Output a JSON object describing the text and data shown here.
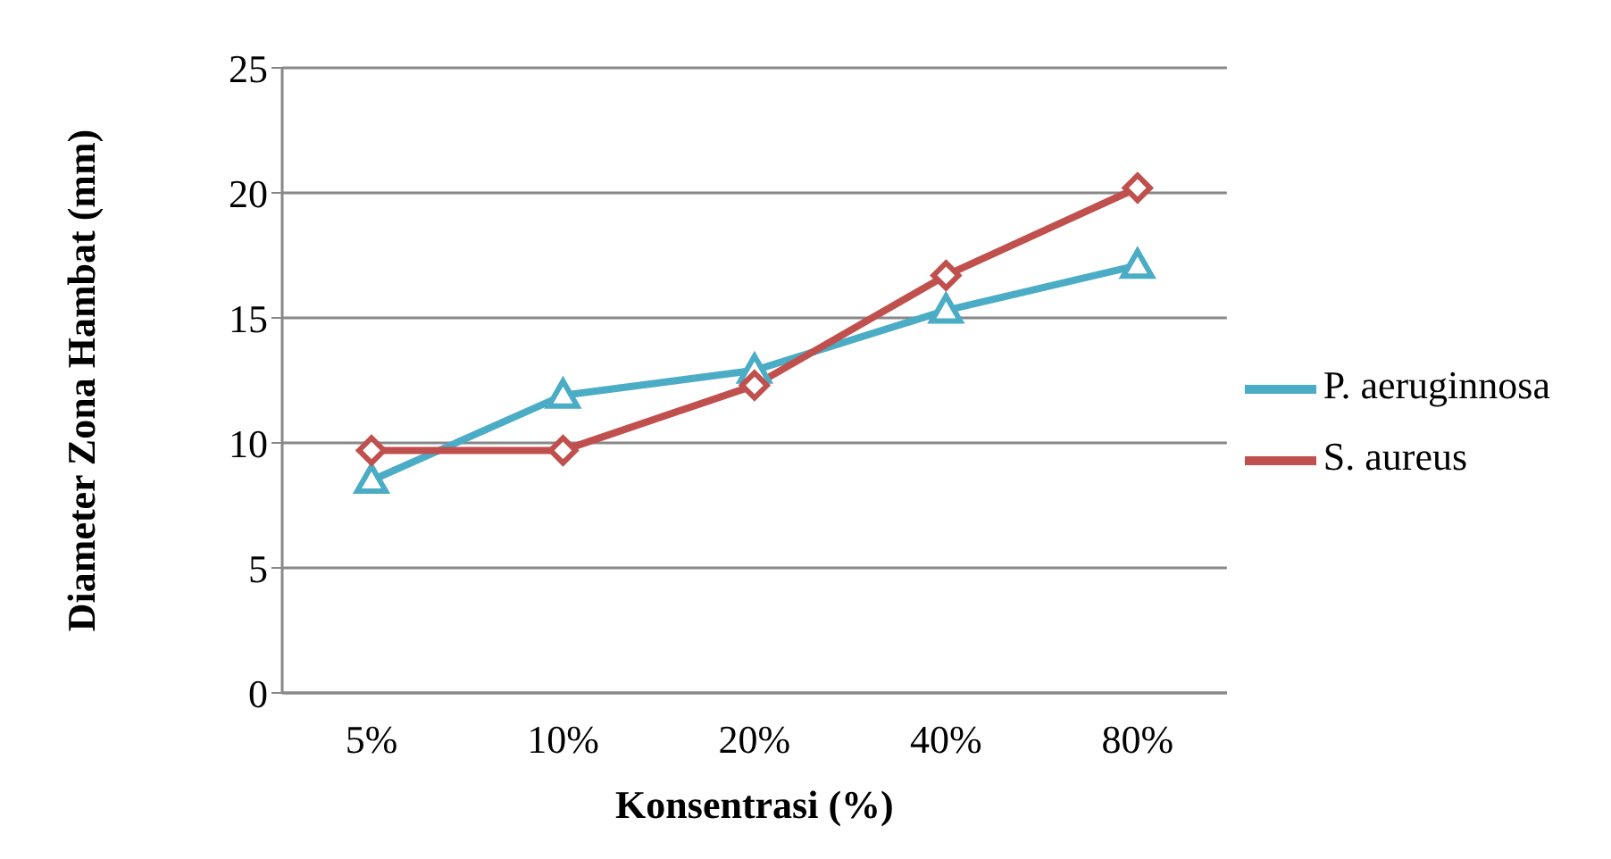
{
  "chart_data": {
    "type": "line",
    "xlabel": "Konsentrasi (%)",
    "ylabel": "Diameter Zona Hambat (mm)",
    "categories": [
      "5%",
      "10%",
      "20%",
      "40%",
      "80%"
    ],
    "series": [
      {
        "name": "P. aeruginnosa",
        "color": "#4bacc6",
        "marker": "triangle",
        "values": [
          8.5,
          11.9,
          12.9,
          15.3,
          17.1
        ]
      },
      {
        "name": "S. aureus",
        "color": "#c0504d",
        "marker": "diamond",
        "values": [
          9.7,
          9.7,
          12.3,
          16.7,
          20.2
        ]
      }
    ],
    "ylim": [
      0,
      25
    ],
    "yticks": [
      0,
      5,
      10,
      15,
      20,
      25
    ],
    "grid": "y",
    "legend": "right",
    "line_style": "solid"
  }
}
